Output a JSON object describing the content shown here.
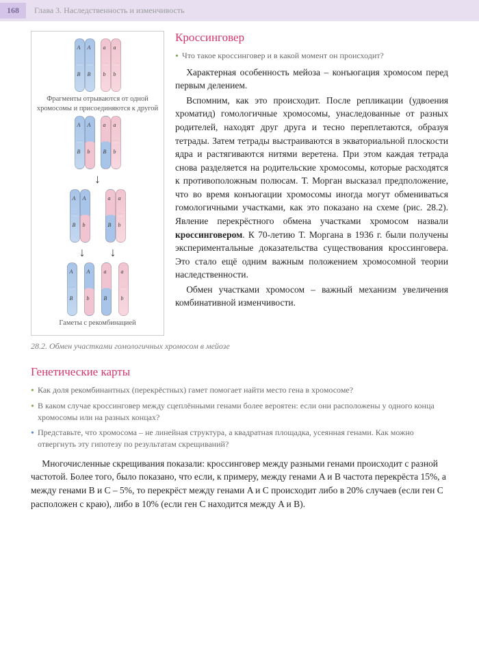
{
  "header": {
    "page_number": "168",
    "chapter": "Глава 3. Наследственность и изменчивость"
  },
  "figure": {
    "caption_top": "Фрагменты отрываются от одной хромосомы и присоединяются к другой",
    "caption_bottom": "Гаметы с рекомбинацией",
    "caption_outside": "28.2. Обмен участками гомологичных хромосом в мейозе",
    "colors": {
      "blue": "#a8c4e8",
      "pink": "#f0c4d0",
      "border": "#cccccc"
    },
    "alleles": {
      "dominant": [
        "A",
        "B"
      ],
      "recessive": [
        "a",
        "b"
      ]
    },
    "stages": 4
  },
  "section1": {
    "title": "Кроссинговер",
    "question": "Что такое кроссинговер и в какой момент он происходит?",
    "p1": "Характерная особенность мейоза – конъюгация хромосом перед первым делением.",
    "p2": "Вспомним, как это происходит. После репликации (удвоения хроматид) гомологичные хромосомы, унаследованные от разных родителей, находят друг друга и тесно переплетаются, образуя тетрады. Затем тетрады выстраиваются в экваториальной плоскости ядра и растягиваются нитями веретена. При этом каждая тетрада снова разделяется на родительские хромосомы, которые расходятся к противоположным полюсам. Т. Морган высказал предположение, что во время конъюгации хромосомы иногда могут обмениваться гомологичными участками, как это показано на схеме (рис. 28.2). Явление перекрёстного обмена участками хромосом назвали ",
    "p2_bold": "кроссинговером",
    "p2_tail": ". К 70-летию Т. Моргана в 1936 г. были получены экспериментальные доказательства существования кроссинговера. Это стало ещё одним важным положением хромосомной теории наследственности.",
    "p3": "Обмен участками хромосом – важный механизм увеличения комбинативной изменчивости."
  },
  "section2": {
    "title": "Генетические карты",
    "q1": "Как доля рекомбинантных (перекрёстных) гамет помогает найти место гена в хромосоме?",
    "q2": "В каком случае кроссинговер между сцеплёнными генами более вероятен: если они расположены у одного конца хромосомы или на разных концах?",
    "q3": "Представьте, что хромосома – не линейная структура, а квадратная площадка, усеянная генами. Как можно отвергнуть эту гипотезу по результатам скрещиваний?",
    "p1": "Многочисленные скрещивания показали: кроссинговер между разными генами происходит с разной частотой. Более того, было показано, что если, к примеру, между генами A и B частота перекрёста 15%, а между генами B и C – 5%, то перекрёст между генами A и C происходит либо в 20% случаев (если ген C расположен с краю), либо в 10% (если ген C находится между A и B)."
  }
}
